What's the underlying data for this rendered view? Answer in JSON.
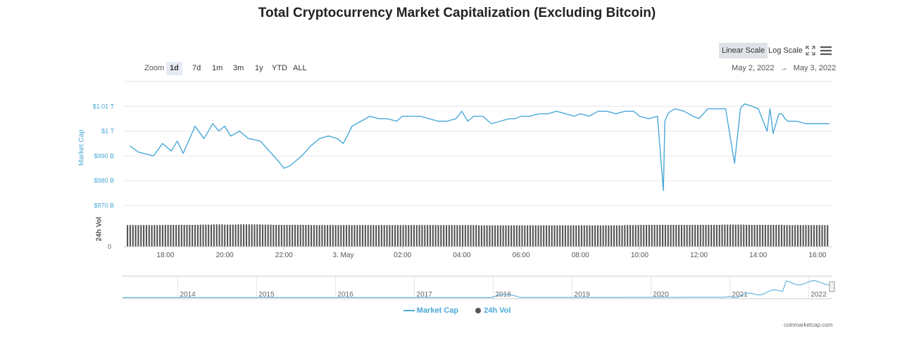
{
  "title": "Total Cryptocurrency Market Capitalization (Excluding Bitcoin)",
  "controls": {
    "linear_scale": "Linear Scale",
    "log_scale": "Log Scale",
    "zoom_label": "Zoom",
    "zoom_options": [
      "1d",
      "7d",
      "1m",
      "3m",
      "1y",
      "YTD",
      "ALL"
    ],
    "zoom_selected": "1d",
    "date_from": "May 2, 2022",
    "date_sep": "→",
    "date_to": "May 3, 2022",
    "fullscreen_icon": "fullscreen-icon",
    "menu_icon": "menu-icon"
  },
  "colors": {
    "market_cap_line": "#4aa8d8",
    "volume_bars": "#555555",
    "grid": "#e6e6e6",
    "active_button": "#dfe3e8"
  },
  "legend": {
    "market_cap": "Market Cap",
    "volume": "24h Vol"
  },
  "credit": "coinmarketcap.com",
  "chart_data": {
    "type": "line",
    "xlabel": "",
    "ylabel": "Market Cap",
    "y_ticks": [
      "$1.01 T",
      "$1 T",
      "$990 B",
      "$980 B",
      "$970 B"
    ],
    "y_tick_values": [
      1010,
      1000,
      990,
      980,
      970
    ],
    "ylim": [
      967,
      1020
    ],
    "y_unit": "billion USD",
    "x_ticks": [
      "18:00",
      "20:00",
      "22:00",
      "3. May",
      "02:00",
      "04:00",
      "06:00",
      "08:00",
      "10:00",
      "12:00",
      "14:00",
      "16:00"
    ],
    "x_tick_hours": [
      18,
      20,
      22,
      24,
      26,
      28,
      30,
      32,
      34,
      36,
      38,
      40
    ],
    "x_range_hours": [
      16.6,
      40.5
    ],
    "x_hours": [
      16.8,
      17.1,
      17.6,
      17.9,
      18.2,
      18.4,
      18.6,
      19.0,
      19.3,
      19.6,
      19.8,
      20.0,
      20.2,
      20.5,
      20.8,
      21.2,
      21.5,
      21.8,
      22.0,
      22.2,
      22.6,
      22.9,
      23.2,
      23.5,
      23.8,
      24.0,
      24.3,
      24.6,
      24.9,
      25.2,
      25.5,
      25.8,
      26.0,
      26.3,
      26.6,
      26.9,
      27.2,
      27.5,
      27.8,
      28.0,
      28.2,
      28.4,
      28.7,
      29.0,
      29.3,
      29.6,
      29.8,
      30.0,
      30.3,
      30.6,
      30.9,
      31.2,
      31.5,
      31.8,
      32.0,
      32.3,
      32.6,
      32.9,
      33.2,
      33.5,
      33.8,
      34.0,
      34.3,
      34.6,
      34.8,
      34.85,
      34.95,
      35.05,
      35.2,
      35.5,
      35.8,
      36.0,
      36.3,
      36.6,
      36.9,
      37.2,
      37.4,
      37.45,
      37.55,
      37.8,
      38.0,
      38.3,
      38.4,
      38.5,
      38.7,
      38.8,
      38.9,
      39.0,
      39.3,
      39.6,
      40.0,
      40.4
    ],
    "values": [
      994,
      991.5,
      990,
      995,
      992,
      996,
      991,
      1002,
      997,
      1003,
      1000,
      1002,
      998,
      1000,
      997,
      996,
      992,
      988,
      985,
      986,
      990,
      994,
      997,
      998,
      997,
      995,
      1002,
      1004,
      1006,
      1005,
      1005,
      1004,
      1006,
      1006,
      1006,
      1005,
      1004,
      1004,
      1005,
      1008,
      1004,
      1006,
      1006,
      1003,
      1004,
      1005,
      1005,
      1006,
      1006,
      1007,
      1007,
      1008,
      1007,
      1006,
      1007,
      1006,
      1008,
      1008,
      1007,
      1008,
      1008,
      1006,
      1005,
      1006,
      976,
      1004,
      1007,
      1008,
      1009,
      1008,
      1006,
      1005,
      1009,
      1009,
      1009,
      987,
      1009,
      1010,
      1011,
      1010,
      1009,
      1000,
      1009,
      999,
      1007,
      1007,
      1005,
      1004,
      1004,
      1003,
      1003,
      1003
    ],
    "volume_note": "24h Vol bars, no printed values",
    "volume_relative": [
      0.93,
      0.93,
      0.93,
      0.94,
      0.94,
      0.94,
      0.95,
      0.96,
      0.95,
      0.96,
      0.96,
      0.95,
      0.94,
      0.94,
      0.94,
      0.93,
      0.93,
      0.93,
      0.93,
      0.93,
      0.93,
      0.93,
      0.93,
      0.93,
      0.93,
      0.93,
      0.93,
      0.93,
      0.93,
      0.92,
      0.92,
      0.92,
      0.92,
      0.92,
      0.92,
      0.92,
      0.92,
      0.92,
      0.92,
      0.92,
      0.92,
      0.93,
      0.94,
      0.94,
      0.94,
      0.94,
      0.94,
      0.94,
      0.94,
      0.95,
      0.95,
      0.94,
      0.94,
      0.94,
      0.93,
      0.93,
      0.93,
      0.93
    ],
    "navigator": {
      "years": [
        "2014",
        "2015",
        "2016",
        "2017",
        "2018",
        "2019",
        "2020",
        "2021",
        "2022"
      ]
    },
    "grid": true,
    "legend_position": "bottom-center"
  }
}
